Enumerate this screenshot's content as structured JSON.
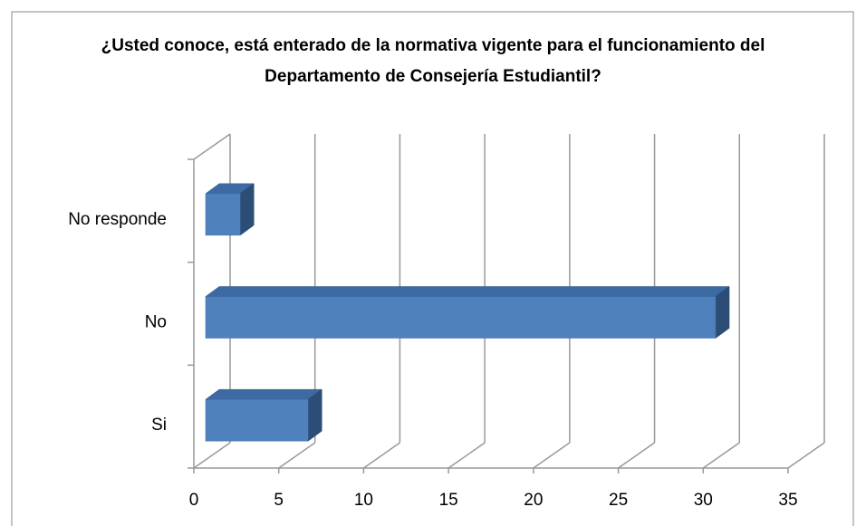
{
  "chart_data": {
    "type": "bar3d_horizontal",
    "title": "¿Usted conoce, está enterado de la normativa vigente para el funcionamiento del Departamento de Consejería Estudiantil?",
    "categories": [
      "Si",
      "No",
      "No responde"
    ],
    "values": [
      7,
      31,
      3
    ],
    "color": "#4f81bd",
    "xlim": [
      0,
      35
    ],
    "xticks": [
      0,
      5,
      10,
      15,
      20,
      25,
      30,
      35
    ],
    "grid": true
  }
}
